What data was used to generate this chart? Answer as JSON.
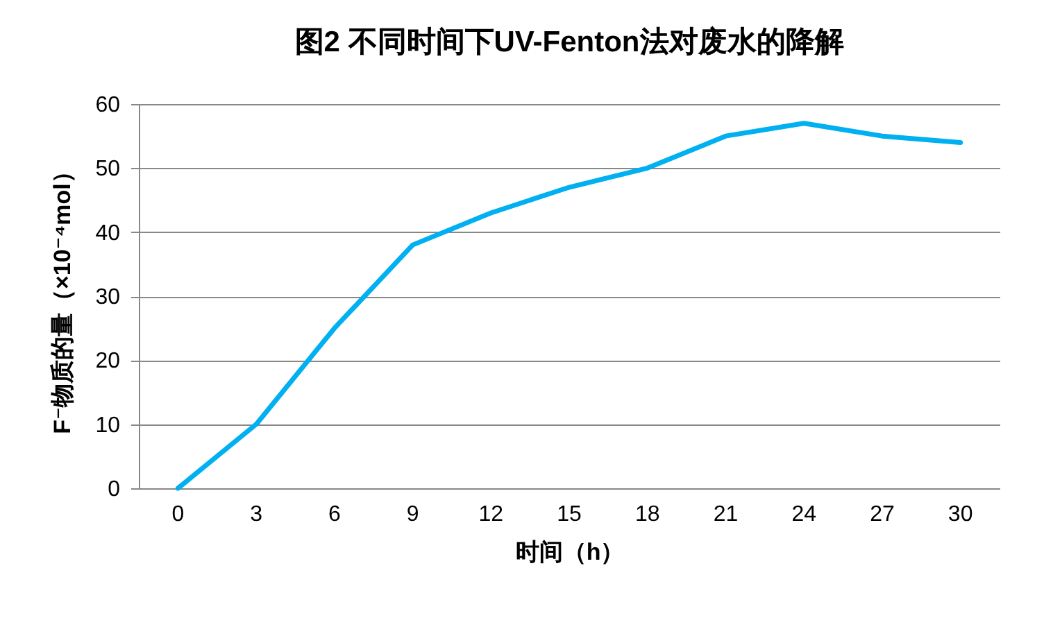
{
  "chart_data": {
    "type": "line",
    "title": "图2  不同时间下UV-Fenton法对废水的降解",
    "xlabel": "时间（h）",
    "ylabel": "F⁻物质的量（×10⁻⁴mol）",
    "categories": [
      "0",
      "3",
      "6",
      "9",
      "12",
      "15",
      "18",
      "21",
      "24",
      "27",
      "30"
    ],
    "series": [
      {
        "color": "#00b0f0",
        "values": [
          0,
          10,
          25,
          38,
          43,
          47,
          50,
          55,
          57,
          55,
          54
        ]
      }
    ],
    "ylim": [
      0,
      60
    ],
    "yticks": [
      0,
      10,
      20,
      30,
      40,
      50,
      60
    ],
    "grid": "y",
    "marker": "none",
    "line_style": "solid"
  }
}
